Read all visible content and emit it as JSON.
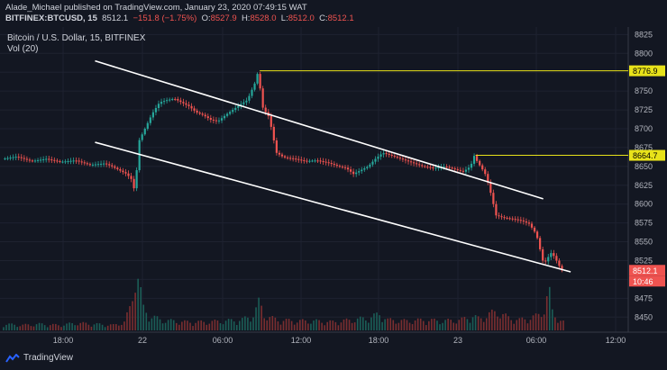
{
  "header": {
    "line1": "Alade_Michael published on TradingView.com, January 23, 2020 07:49:15 WAT",
    "symbol": "BITFINEX:BTCUSD, 15",
    "last": "8512.1",
    "change": "−151.8 (−1.75%)",
    "o_label": "O:",
    "o": "8527.9",
    "h_label": "H:",
    "h": "8528.0",
    "l_label": "L:",
    "l": "8512.0",
    "c_label": "C:",
    "c": "8512.1"
  },
  "chart_title": "Bitcoin / U.S. Dollar, 15, BITFINEX",
  "volume_label": "Vol (20)",
  "footer": {
    "brand": "TradingView"
  },
  "colors": {
    "up": "#26a69a",
    "down": "#ef5350",
    "bg": "#131722",
    "yellow": "#e8e21a",
    "channel": "#ffffff"
  },
  "chart_data": {
    "type": "candlestick",
    "title": "Bitcoin / U.S. Dollar, 15, BITFINEX",
    "ylim": [
      8430,
      8835
    ],
    "y_ticks": [
      8450,
      8475,
      8500,
      8525,
      8550,
      8575,
      8600,
      8625,
      8650,
      8675,
      8700,
      8725,
      8750,
      8775,
      8800,
      8825
    ],
    "x_ticks": [
      "18:00",
      "22",
      "06:00",
      "12:00",
      "18:00",
      "23",
      "06:00",
      "12:00"
    ],
    "price_labels": [
      {
        "value": 8776.9,
        "text": "8776.9",
        "style": "yellow"
      },
      {
        "value": 8664.7,
        "text": "8664.7",
        "style": "yellow"
      },
      {
        "value": 8512.1,
        "text": "8512.1",
        "style": "red"
      }
    ],
    "countdown": "10:46",
    "horizontal_levels": [
      8776.9,
      8664.7
    ],
    "channel_lines": [
      {
        "from": [
          "21 19:30",
          8790
        ],
        "to": [
          "23 13:00",
          8607
        ]
      },
      {
        "from": [
          "21 19:30",
          8682
        ],
        "to": [
          "23 09:00",
          8510
        ]
      }
    ],
    "price_path": [
      [
        0,
        8660
      ],
      [
        8,
        8663
      ],
      [
        16,
        8657
      ],
      [
        24,
        8660
      ],
      [
        32,
        8656
      ],
      [
        40,
        8658
      ],
      [
        48,
        8652
      ],
      [
        56,
        8654
      ],
      [
        60,
        8650
      ],
      [
        64,
        8645
      ],
      [
        68,
        8640
      ],
      [
        71,
        8632
      ],
      [
        73,
        8610
      ],
      [
        74,
        8680
      ],
      [
        78,
        8700
      ],
      [
        82,
        8720
      ],
      [
        86,
        8735
      ],
      [
        90,
        8738
      ],
      [
        94,
        8740
      ],
      [
        98,
        8735
      ],
      [
        102,
        8730
      ],
      [
        106,
        8722
      ],
      [
        110,
        8718
      ],
      [
        114,
        8712
      ],
      [
        118,
        8710
      ],
      [
        122,
        8718
      ],
      [
        126,
        8725
      ],
      [
        130,
        8732
      ],
      [
        134,
        8738
      ],
      [
        138,
        8760
      ],
      [
        140,
        8777
      ],
      [
        142,
        8730
      ],
      [
        144,
        8722
      ],
      [
        146,
        8715
      ],
      [
        148,
        8690
      ],
      [
        150,
        8668
      ],
      [
        154,
        8662
      ],
      [
        160,
        8660
      ],
      [
        166,
        8657
      ],
      [
        172,
        8658
      ],
      [
        178,
        8655
      ],
      [
        184,
        8650
      ],
      [
        188,
        8648
      ],
      [
        192,
        8640
      ],
      [
        196,
        8645
      ],
      [
        200,
        8650
      ],
      [
        204,
        8660
      ],
      [
        208,
        8668
      ],
      [
        212,
        8665
      ],
      [
        218,
        8660
      ],
      [
        224,
        8655
      ],
      [
        230,
        8650
      ],
      [
        236,
        8648
      ],
      [
        242,
        8650
      ],
      [
        248,
        8646
      ],
      [
        252,
        8643
      ],
      [
        256,
        8650
      ],
      [
        258,
        8664
      ],
      [
        260,
        8655
      ],
      [
        262,
        8648
      ],
      [
        264,
        8640
      ],
      [
        266,
        8625
      ],
      [
        268,
        8605
      ],
      [
        270,
        8585
      ],
      [
        274,
        8582
      ],
      [
        280,
        8580
      ],
      [
        284,
        8578
      ],
      [
        288,
        8574
      ],
      [
        292,
        8560
      ],
      [
        294,
        8540
      ],
      [
        296,
        8520
      ],
      [
        298,
        8528
      ],
      [
        300,
        8535
      ],
      [
        302,
        8530
      ],
      [
        304,
        8520
      ],
      [
        306,
        8512
      ]
    ],
    "volume_path": [
      [
        0,
        6
      ],
      [
        10,
        5
      ],
      [
        20,
        6
      ],
      [
        30,
        5
      ],
      [
        40,
        7
      ],
      [
        50,
        6
      ],
      [
        60,
        5
      ],
      [
        66,
        8
      ],
      [
        70,
        25
      ],
      [
        72,
        60
      ],
      [
        74,
        48
      ],
      [
        76,
        22
      ],
      [
        80,
        14
      ],
      [
        86,
        10
      ],
      [
        92,
        9
      ],
      [
        100,
        8
      ],
      [
        110,
        8
      ],
      [
        120,
        9
      ],
      [
        130,
        10
      ],
      [
        136,
        14
      ],
      [
        138,
        20
      ],
      [
        140,
        28
      ],
      [
        142,
        16
      ],
      [
        146,
        12
      ],
      [
        150,
        10
      ],
      [
        160,
        9
      ],
      [
        170,
        9
      ],
      [
        180,
        8
      ],
      [
        190,
        10
      ],
      [
        200,
        12
      ],
      [
        206,
        16
      ],
      [
        210,
        10
      ],
      [
        220,
        9
      ],
      [
        230,
        10
      ],
      [
        240,
        9
      ],
      [
        250,
        10
      ],
      [
        256,
        14
      ],
      [
        260,
        11
      ],
      [
        266,
        16
      ],
      [
        270,
        18
      ],
      [
        276,
        12
      ],
      [
        282,
        10
      ],
      [
        288,
        12
      ],
      [
        292,
        14
      ],
      [
        296,
        22
      ],
      [
        298,
        40
      ],
      [
        300,
        18
      ],
      [
        304,
        10
      ],
      [
        306,
        8
      ]
    ]
  }
}
